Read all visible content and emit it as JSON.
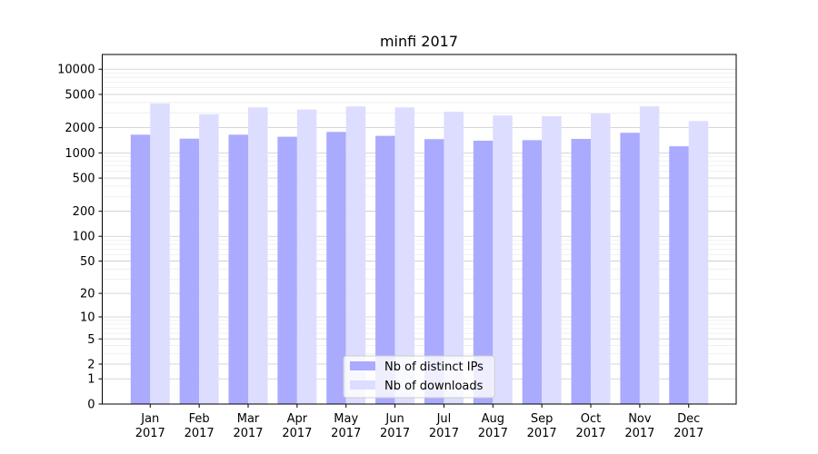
{
  "chart_data": {
    "type": "bar",
    "title": "minfi 2017",
    "xlabel": "",
    "ylabel": "",
    "y_scale": "symlog",
    "ylim": [
      0,
      15000
    ],
    "y_ticks": [
      0,
      1,
      2,
      5,
      10,
      20,
      50,
      100,
      200,
      500,
      1000,
      2000,
      5000,
      10000
    ],
    "categories": [
      "Jan\n2017",
      "Feb\n2017",
      "Mar\n2017",
      "Apr\n2017",
      "May\n2017",
      "Jun\n2017",
      "Jul\n2017",
      "Aug\n2017",
      "Sep\n2017",
      "Oct\n2017",
      "Nov\n2017",
      "Dec\n2017"
    ],
    "series": [
      {
        "name": "Nb of distinct IPs",
        "color": "#aaaaff",
        "values": [
          1650,
          1480,
          1650,
          1560,
          1780,
          1600,
          1460,
          1400,
          1420,
          1470,
          1740,
          1200
        ]
      },
      {
        "name": "Nb of downloads",
        "color": "#ddddff",
        "values": [
          3900,
          2900,
          3500,
          3300,
          3600,
          3500,
          3100,
          2800,
          2750,
          2950,
          3600,
          2400
        ]
      }
    ],
    "grid": true,
    "legend_position": "lower-center"
  }
}
